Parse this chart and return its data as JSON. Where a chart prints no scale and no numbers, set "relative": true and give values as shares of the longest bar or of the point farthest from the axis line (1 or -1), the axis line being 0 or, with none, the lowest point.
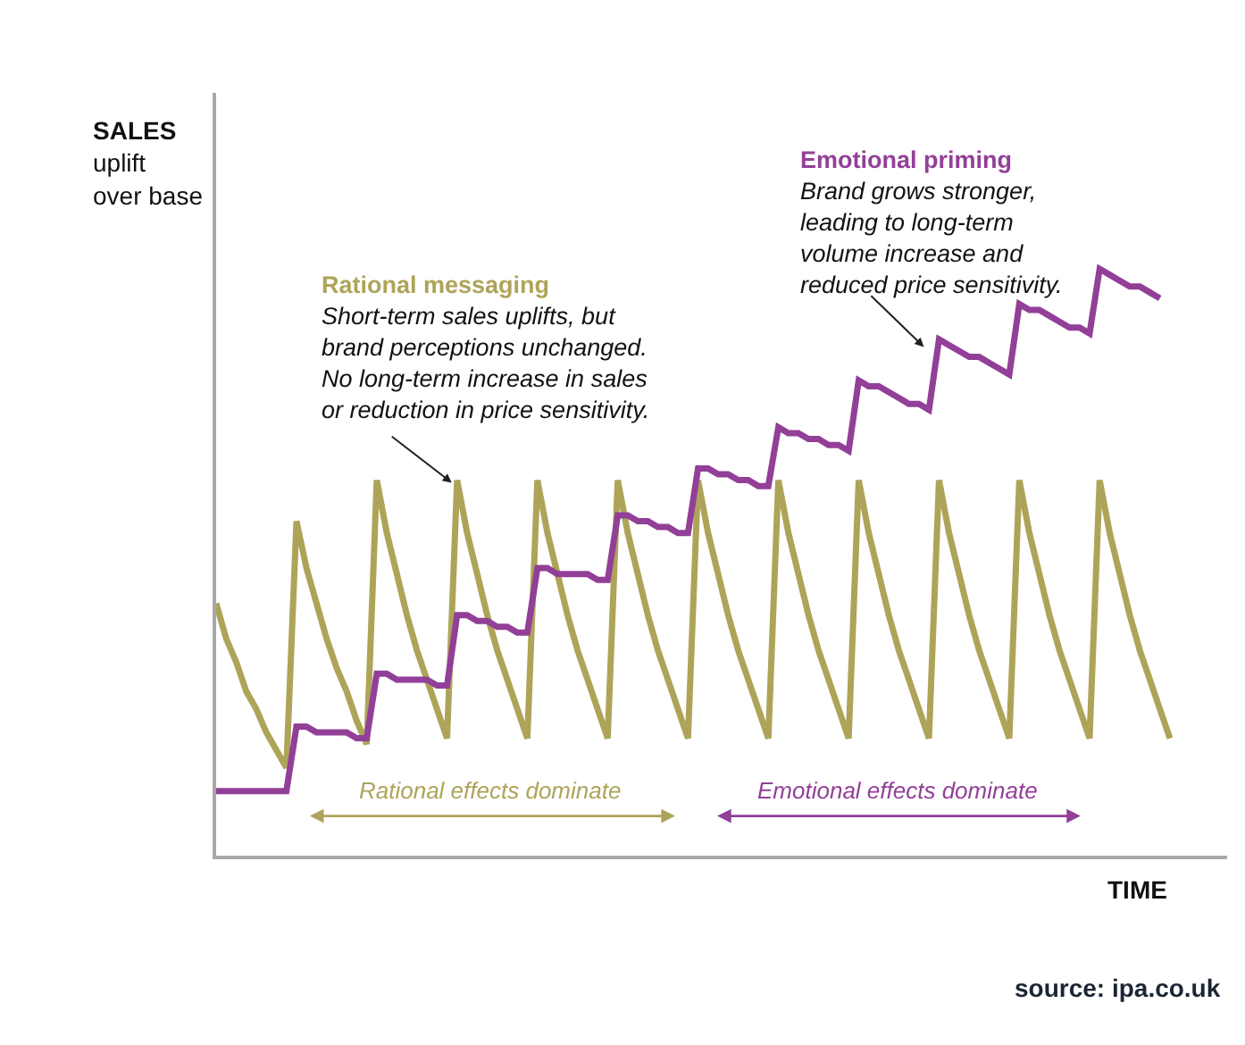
{
  "chart_data": {
    "type": "line",
    "relative": true,
    "ylabel": "SALES\nuplift\nover base",
    "xlabel": "TIME",
    "categories": [
      null,
      null,
      null,
      null,
      null,
      null,
      null,
      null,
      null,
      null,
      null,
      null,
      null,
      null,
      null,
      null,
      null,
      null,
      null,
      null,
      null,
      null,
      null,
      null,
      null,
      null,
      null,
      null,
      null,
      null,
      null,
      null,
      null,
      null,
      null,
      null,
      null,
      null,
      null,
      null,
      null,
      null,
      null,
      null,
      null,
      null,
      null,
      null,
      null,
      null,
      null,
      null,
      null,
      null,
      null,
      null,
      null,
      null,
      null,
      null,
      null,
      null,
      null,
      null,
      null,
      null,
      null,
      null,
      null,
      null,
      null,
      null,
      null,
      null,
      null,
      null,
      null,
      null,
      null,
      null,
      null,
      null,
      null,
      null,
      null,
      null,
      null,
      null,
      null,
      null,
      null,
      null,
      null,
      null,
      null,
      null
    ],
    "series": [
      {
        "color": "#aea459",
        "values": [
          0.43,
          0.37,
          0.33,
          0.28,
          0.25,
          0.21,
          0.18,
          0.15,
          0.57,
          0.49,
          0.43,
          0.37,
          0.32,
          0.28,
          0.23,
          0.19,
          0.64,
          0.55,
          0.48,
          0.41,
          0.35,
          0.3,
          0.25,
          0.2,
          0.64,
          0.55,
          0.48,
          0.41,
          0.35,
          0.3,
          0.25,
          0.2,
          0.64,
          0.55,
          0.48,
          0.41,
          0.35,
          0.3,
          0.25,
          0.2,
          0.64,
          0.55,
          0.48,
          0.41,
          0.35,
          0.3,
          0.25,
          0.2,
          0.64,
          0.55,
          0.48,
          0.41,
          0.35,
          0.3,
          0.25,
          0.2,
          0.64,
          0.55,
          0.48,
          0.41,
          0.35,
          0.3,
          0.25,
          0.2,
          0.64,
          0.55,
          0.48,
          0.41,
          0.35,
          0.3,
          0.25,
          0.2,
          0.64,
          0.55,
          0.48,
          0.41,
          0.35,
          0.3,
          0.25,
          0.2,
          0.64,
          0.55,
          0.48,
          0.41,
          0.35,
          0.3,
          0.25,
          0.2,
          0.64,
          0.55,
          0.48,
          0.41,
          0.35,
          0.3,
          0.25,
          0.2
        ]
      },
      {
        "color": "#923f98",
        "values": [
          0.11,
          0.11,
          0.11,
          0.11,
          0.11,
          0.11,
          0.11,
          0.11,
          0.22,
          0.22,
          0.21,
          0.21,
          0.21,
          0.21,
          0.2,
          0.2,
          0.31,
          0.31,
          0.3,
          0.3,
          0.3,
          0.3,
          0.29,
          0.29,
          0.41,
          0.41,
          0.4,
          0.4,
          0.39,
          0.39,
          0.38,
          0.38,
          0.49,
          0.49,
          0.48,
          0.48,
          0.48,
          0.48,
          0.47,
          0.47,
          0.58,
          0.58,
          0.57,
          0.57,
          0.56,
          0.56,
          0.55,
          0.55,
          0.66,
          0.66,
          0.65,
          0.65,
          0.64,
          0.64,
          0.63,
          0.63,
          0.73,
          0.72,
          0.72,
          0.71,
          0.71,
          0.7,
          0.7,
          0.69,
          0.81,
          0.8,
          0.8,
          0.79,
          0.78,
          0.77,
          0.77,
          0.76,
          0.88,
          0.87,
          0.86,
          0.85,
          0.85,
          0.84,
          0.83,
          0.82,
          0.94,
          0.93,
          0.93,
          0.92,
          0.91,
          0.9,
          0.9,
          0.89,
          1.0,
          0.99,
          0.98,
          0.97,
          0.97,
          0.96,
          0.95,
          null
        ]
      }
    ],
    "annotations": [
      "Rational messaging\nShort-term sales uplifts, but\nbrand perceptions unchanged.\nNo long-term increase in sales\nor reduction in price sensitivity.",
      "Emotional priming\nBrand grows stronger,\nleading to long-term\nvolume increase and\nreduced price sensitivity.",
      "Rational effects dominate",
      "Emotional effects dominate",
      "source: ipa.co.uk"
    ]
  }
}
